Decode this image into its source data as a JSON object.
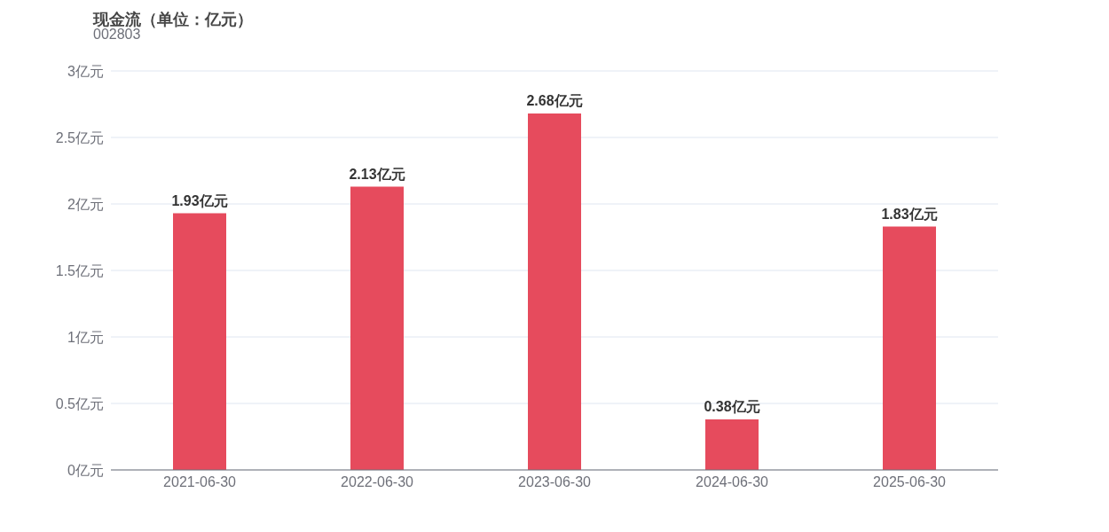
{
  "chart_data": {
    "type": "bar",
    "title": "现金流（单位：亿元）",
    "subtitle": "002803",
    "categories": [
      "2021-06-30",
      "2022-06-30",
      "2023-06-30",
      "2024-06-30",
      "2025-06-30"
    ],
    "values": [
      1.93,
      2.13,
      2.68,
      0.38,
      1.83
    ],
    "value_labels": [
      "1.93亿元",
      "2.13亿元",
      "2.68亿元",
      "0.38亿元",
      "1.83亿元"
    ],
    "color": "#e64b5d",
    "ylim": [
      0,
      3
    ],
    "yticks": [
      {
        "value": 0,
        "label": "0亿元"
      },
      {
        "value": 0.5,
        "label": "0.5亿元"
      },
      {
        "value": 1,
        "label": "1亿元"
      },
      {
        "value": 1.5,
        "label": "1.5亿元"
      },
      {
        "value": 2,
        "label": "2亿元"
      },
      {
        "value": 2.5,
        "label": "2.5亿元"
      },
      {
        "value": 3,
        "label": "3亿元"
      }
    ],
    "grid": "y"
  }
}
